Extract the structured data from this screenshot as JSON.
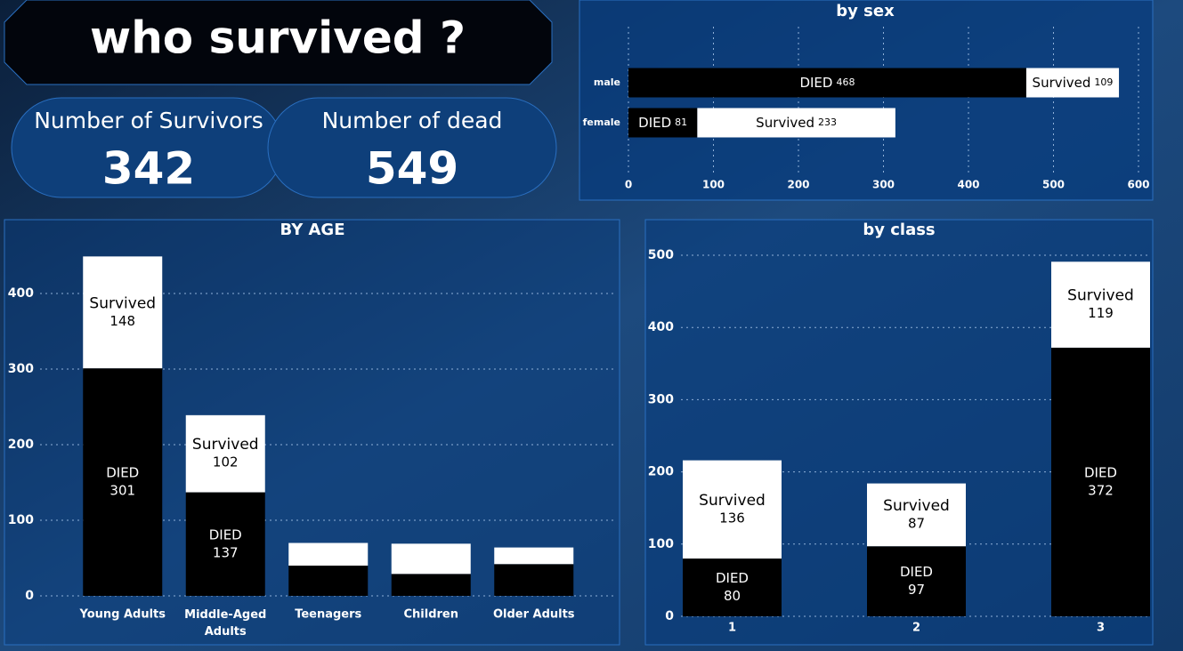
{
  "title": "who survived ?",
  "kpis": [
    {
      "label": "Number of Survivors",
      "value": 342
    },
    {
      "label": "Number of dead",
      "value": 549
    }
  ],
  "chart_data": [
    {
      "type": "bar",
      "orientation": "horizontal",
      "title": "by sex",
      "categories": [
        "male",
        "female"
      ],
      "series": [
        {
          "name": "DIED",
          "color": "#000000",
          "values": [
            468,
            81
          ]
        },
        {
          "name": "Survived",
          "color": "#ffffff",
          "values": [
            109,
            233
          ]
        }
      ],
      "xlim": [
        0,
        600
      ],
      "xticks": [
        0,
        100,
        200,
        300,
        400,
        500,
        600
      ],
      "grid": true
    },
    {
      "type": "bar",
      "orientation": "vertical",
      "title": "BY AGE",
      "categories": [
        "Young Adults",
        "Middle-Aged Adults",
        "Teenagers",
        "Children",
        "Older Adults"
      ],
      "series": [
        {
          "name": "DIED",
          "color": "#000000",
          "values": [
            301,
            137,
            40,
            29,
            42
          ]
        },
        {
          "name": "Survived",
          "color": "#ffffff",
          "values": [
            148,
            102,
            30,
            40,
            22
          ]
        }
      ],
      "ylim": [
        0,
        450
      ],
      "yticks": [
        0,
        100,
        200,
        300,
        400
      ],
      "grid": true
    },
    {
      "type": "bar",
      "orientation": "vertical",
      "title": "by class",
      "categories": [
        "1",
        "2",
        "3"
      ],
      "series": [
        {
          "name": "DIED",
          "color": "#000000",
          "values": [
            80,
            97,
            372
          ]
        },
        {
          "name": "Survived",
          "color": "#ffffff",
          "values": [
            136,
            87,
            119
          ]
        }
      ],
      "ylim": [
        0,
        500
      ],
      "yticks": [
        0,
        100,
        200,
        300,
        400,
        500
      ],
      "grid": true
    }
  ]
}
